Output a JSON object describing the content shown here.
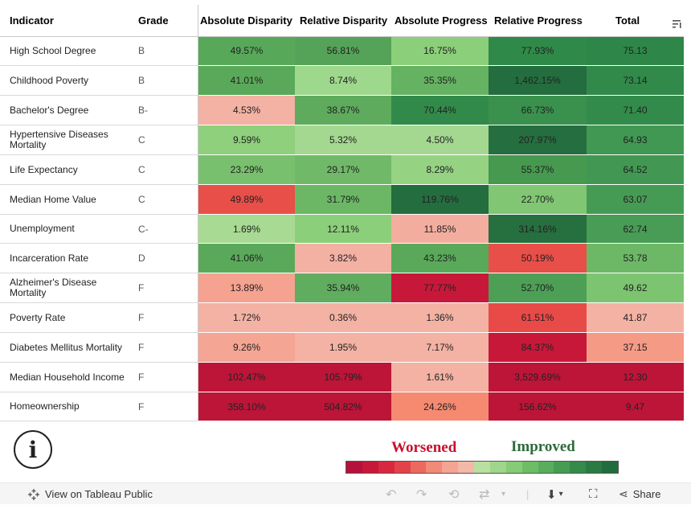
{
  "headers": {
    "indicator": "Indicator",
    "grade": "Grade",
    "abs_disparity": "Absolute Disparity",
    "rel_disparity": "Relative Disparity",
    "abs_progress": "Absolute Progress",
    "rel_progress": "Relative Progress",
    "total": "Total"
  },
  "rows": [
    {
      "indicator": "High School Degree",
      "grade": "B",
      "abs_disparity": "49.57%",
      "rel_disparity": "56.81%",
      "abs_progress": "16.75%",
      "rel_progress": "77.93%",
      "total": "75.13",
      "colors": [
        "#58a85a",
        "#55a358",
        "#8ccf7a",
        "#2f8a49",
        "#2e8748"
      ]
    },
    {
      "indicator": "Childhood Poverty",
      "grade": "B",
      "abs_disparity": "41.01%",
      "rel_disparity": "8.74%",
      "abs_progress": "35.35%",
      "rel_progress": "1,462.15%",
      "total": "73.14",
      "colors": [
        "#5aa95a",
        "#9ed88c",
        "#65b262",
        "#246d3e",
        "#31894a"
      ]
    },
    {
      "indicator": "Bachelor's Degree",
      "grade": "B-",
      "abs_disparity": "4.53%",
      "rel_disparity": "38.67%",
      "abs_progress": "70.44%",
      "rel_progress": "66.73%",
      "total": "71.40",
      "colors": [
        "#f3b2a4",
        "#5eab5d",
        "#328a4a",
        "#3a914d",
        "#338b4b"
      ]
    },
    {
      "indicator": "Hypertensive Diseases Mortality",
      "grade": "C",
      "abs_disparity": "9.59%",
      "rel_disparity": "5.32%",
      "abs_progress": "4.50%",
      "rel_progress": "207.97%",
      "total": "64.93",
      "colors": [
        "#8fd07c",
        "#a4d890",
        "#a4d890",
        "#256e3f",
        "#419852"
      ]
    },
    {
      "indicator": "Life Expectancy",
      "grade": "C",
      "abs_disparity": "23.29%",
      "rel_disparity": "29.17%",
      "abs_progress": "8.29%",
      "rel_progress": "55.37%",
      "total": "64.52",
      "colors": [
        "#79c06e",
        "#70b968",
        "#95d383",
        "#46994f",
        "#429852"
      ]
    },
    {
      "indicator": "Median Home Value",
      "grade": "C",
      "abs_disparity": "49.89%",
      "rel_disparity": "31.79%",
      "abs_progress": "119.76%",
      "rel_progress": "22.70%",
      "total": "63.07",
      "colors": [
        "#e84f49",
        "#6bb765",
        "#246d3e",
        "#81c673",
        "#469b54"
      ]
    },
    {
      "indicator": "Unemployment",
      "grade": "C-",
      "abs_disparity": "1.69%",
      "rel_disparity": "12.11%",
      "abs_progress": "11.85%",
      "rel_progress": "314.16%",
      "total": "62.74",
      "colors": [
        "#a8da93",
        "#8ccf7a",
        "#f2ad9f",
        "#266f3f",
        "#489c55"
      ]
    },
    {
      "indicator": "Incarceration Rate",
      "grade": "D",
      "abs_disparity": "41.06%",
      "rel_disparity": "3.82%",
      "abs_progress": "43.23%",
      "rel_progress": "50.19%",
      "total": "53.78",
      "colors": [
        "#5aa95a",
        "#f3b1a3",
        "#5aa95a",
        "#e84f49",
        "#6db866"
      ]
    },
    {
      "indicator": "Alzheimer's Disease Mortality",
      "grade": "F",
      "abs_disparity": "13.89%",
      "rel_disparity": "35.94%",
      "abs_progress": "77.77%",
      "rel_progress": "52.70%",
      "total": "49.62",
      "colors": [
        "#f5a291",
        "#61ad5f",
        "#c8183a",
        "#4d9f56",
        "#7dc471"
      ]
    },
    {
      "indicator": "Poverty Rate",
      "grade": "F",
      "abs_disparity": "1.72%",
      "rel_disparity": "0.36%",
      "abs_progress": "1.36%",
      "rel_progress": "61.51%",
      "total": "41.87",
      "colors": [
        "#f3b2a4",
        "#f3b2a4",
        "#f3b2a4",
        "#e84a48",
        "#f3b2a4"
      ]
    },
    {
      "indicator": "Diabetes Mellitus Mortality",
      "grade": "F",
      "abs_disparity": "9.26%",
      "rel_disparity": "1.95%",
      "abs_progress": "7.17%",
      "rel_progress": "84.37%",
      "total": "37.15",
      "colors": [
        "#f5a593",
        "#f3b2a4",
        "#f3b2a4",
        "#c8183a",
        "#f59a85"
      ]
    },
    {
      "indicator": "Median Household Income",
      "grade": "F",
      "abs_disparity": "102.47%",
      "rel_disparity": "105.79%",
      "abs_progress": "1.61%",
      "rel_progress": "3,529.69%",
      "total": "12.30",
      "colors": [
        "#bc1538",
        "#bc1538",
        "#f3b2a4",
        "#bc1538",
        "#bc1538"
      ]
    },
    {
      "indicator": "Homeownership",
      "grade": "F",
      "abs_disparity": "358.10%",
      "rel_disparity": "504.82%",
      "abs_progress": "24.26%",
      "rel_progress": "156.62%",
      "total": "9.47",
      "colors": [
        "#bc1538",
        "#bc1538",
        "#f58a71",
        "#bc1538",
        "#bc1538"
      ]
    }
  ],
  "legend": {
    "worsened": "Worsened",
    "improved": "Improved",
    "scale": [
      "#b5113a",
      "#c8183a",
      "#d8283f",
      "#e4424a",
      "#ec6a5d",
      "#f18a77",
      "#f4a493",
      "#f3b8a8",
      "#b8e0a0",
      "#9fd68b",
      "#86cb76",
      "#6dbd66",
      "#58ae5c",
      "#449d52",
      "#358b4a",
      "#2a7b43",
      "#216c3c"
    ]
  },
  "info_label": "i",
  "toolbar": {
    "view_on_tableau": "View on Tableau Public",
    "share": "Share"
  }
}
